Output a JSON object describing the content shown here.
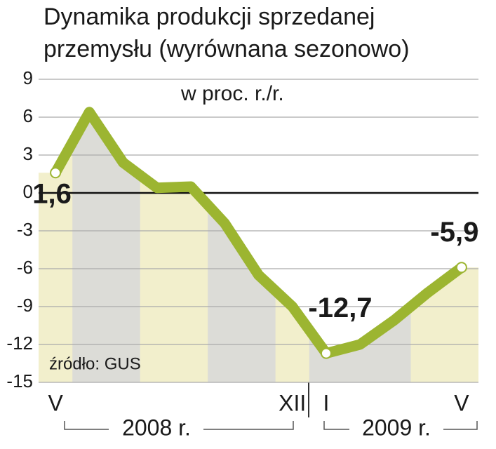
{
  "chart_data": {
    "type": "line",
    "title": [
      "Dynamika produkcji sprzedanej",
      "przemysłu (wyrównana sezonowo)"
    ],
    "subtitle": "w proc. r./r.",
    "source": "źródło: GUS",
    "years": [
      "2008 r.",
      "2009 r."
    ],
    "categories": [
      "V",
      null,
      null,
      null,
      null,
      null,
      null,
      "XII",
      "I",
      null,
      null,
      null,
      "V"
    ],
    "series": [
      {
        "color": "#9cb531",
        "values": [
          1.6,
          6.4,
          2.4,
          0.4,
          0.5,
          -2.4,
          -6.5,
          -9.0,
          -12.7,
          -12.0,
          -10.1,
          -7.9,
          -5.9
        ],
        "value_labels": [
          "1,6",
          null,
          null,
          null,
          null,
          null,
          null,
          null,
          "-12,7",
          null,
          null,
          null,
          "-5,9"
        ]
      }
    ],
    "ylim": [
      -15,
      9
    ],
    "yticks": [
      9,
      6,
      3,
      0,
      -3,
      -6,
      -9,
      -12,
      -15
    ],
    "grid": true
  }
}
